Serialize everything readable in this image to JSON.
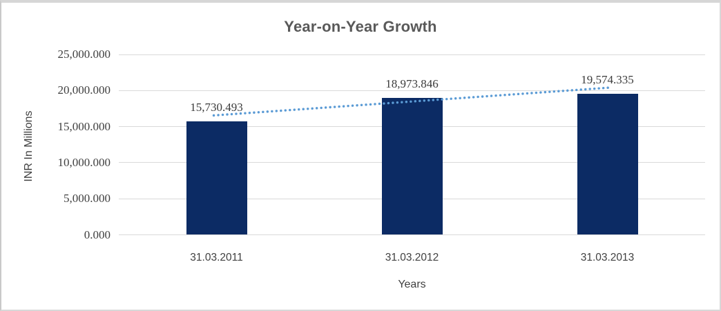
{
  "window": {
    "background": "#ffffff",
    "frame_border_color": "#d6d6d6"
  },
  "chart_data": {
    "type": "bar",
    "title": "Year-on-Year Growth",
    "xlabel": "Years",
    "ylabel": "INR In Millions",
    "categories": [
      "31.03.2011",
      "31.03.2012",
      "31.03.2013"
    ],
    "values": [
      15730.493,
      18973.846,
      19574.335
    ],
    "data_labels": [
      "15,730.493",
      "18,973.846",
      "19,574.335"
    ],
    "ytick_labels": [
      "0.000",
      "5,000.000",
      "10,000.000",
      "15,000.000",
      "20,000.000",
      "25,000.000"
    ],
    "ytick_values": [
      0,
      5000,
      10000,
      15000,
      20000,
      25000
    ],
    "ylim": [
      0,
      25000
    ],
    "grid": true,
    "legend": false,
    "bar_color": "#0c2b64",
    "gridline_color": "#d9d9d9",
    "title_color": "#595959",
    "text_color": "#404040",
    "trendline": {
      "type": "linear",
      "style": "dotted",
      "color": "#5b9bd5"
    }
  }
}
